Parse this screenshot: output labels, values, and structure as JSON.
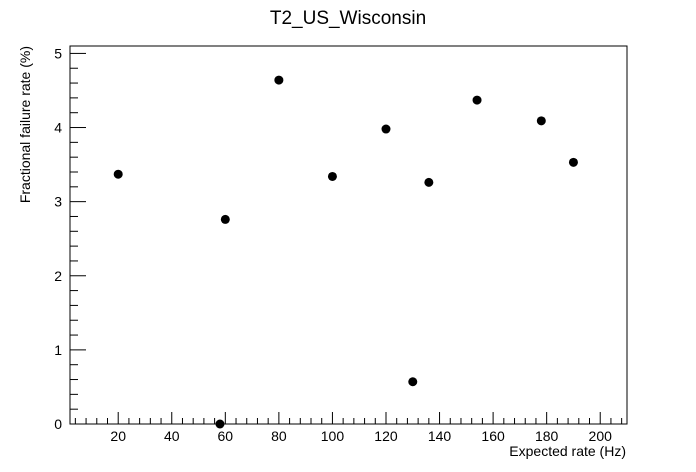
{
  "chart_data": {
    "type": "scatter",
    "title": "T2_US_Wisconsin",
    "xlabel": "Expected rate (Hz)",
    "ylabel": "Fractional failure rate (%)",
    "xlim": [
      2,
      210
    ],
    "ylim": [
      0,
      5.1
    ],
    "x_ticks": [
      20,
      40,
      60,
      80,
      100,
      120,
      140,
      160,
      180,
      200
    ],
    "y_ticks": [
      0,
      1,
      2,
      3,
      4,
      5
    ],
    "grid": false,
    "legend": "none",
    "marker_color": "#000000",
    "points": [
      {
        "x": 20,
        "y": 3.37
      },
      {
        "x": 58,
        "y": 0.0
      },
      {
        "x": 60,
        "y": 2.76
      },
      {
        "x": 80,
        "y": 4.64
      },
      {
        "x": 100,
        "y": 3.34
      },
      {
        "x": 120,
        "y": 3.98
      },
      {
        "x": 130,
        "y": 0.57
      },
      {
        "x": 136,
        "y": 3.26
      },
      {
        "x": 154,
        "y": 4.37
      },
      {
        "x": 178,
        "y": 4.09
      },
      {
        "x": 190,
        "y": 3.53
      }
    ]
  }
}
